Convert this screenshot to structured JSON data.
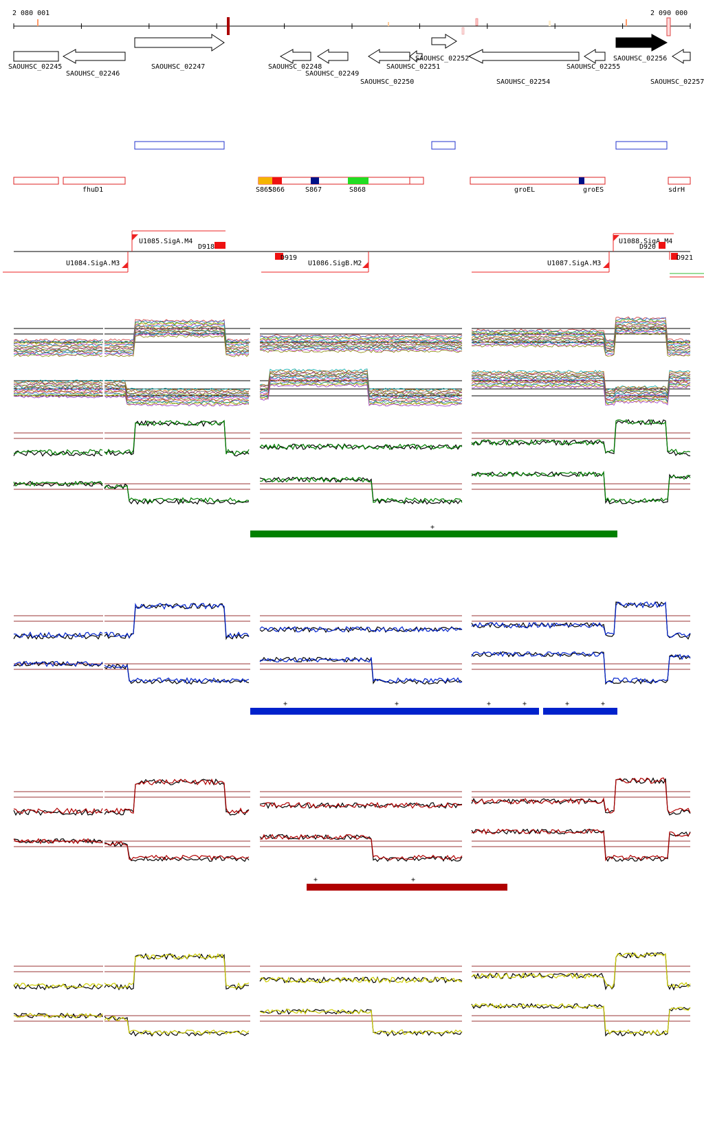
{
  "ruler": {
    "start_label": "2 080 001",
    "end_label": "2 090 000"
  },
  "genes": [
    {
      "label": "SAOUHSC_02245",
      "dir": "right",
      "highlight": false
    },
    {
      "label": "SAOUHSC_02246",
      "dir": "left",
      "highlight": false
    },
    {
      "label": "SAOUHSC_02247",
      "dir": "right",
      "highlight": false
    },
    {
      "label": "SAOUHSC_02248",
      "dir": "left",
      "highlight": false
    },
    {
      "label": "SAOUHSC_02249",
      "dir": "left",
      "highlight": false
    },
    {
      "label": "SAOUHSC_02250",
      "dir": "left",
      "highlight": false
    },
    {
      "label": "SAOUHSC_02251",
      "dir": "left",
      "highlight": false
    },
    {
      "label": "SAOUHSC_02252",
      "dir": "right",
      "highlight": false
    },
    {
      "label": "SAOUHSC_02254",
      "dir": "left",
      "highlight": false
    },
    {
      "label": "SAOUHSC_02255",
      "dir": "left",
      "highlight": false
    },
    {
      "label": "SAOUHSC_02256",
      "dir": "right",
      "highlight": true
    },
    {
      "label": "SAOUHSC_02257",
      "dir": "left",
      "highlight": false
    }
  ],
  "annotations": [
    {
      "label": "fhuD1"
    },
    {
      "label": "S865"
    },
    {
      "label": "S866"
    },
    {
      "label": "S867"
    },
    {
      "label": "S868"
    },
    {
      "label": "groEL"
    },
    {
      "label": "groES"
    },
    {
      "label": "sdrH"
    }
  ],
  "promoters": [
    {
      "label": "U1085.SigA.M4",
      "strand": "+"
    },
    {
      "label": "U1084.SigA.M3",
      "strand": "-"
    },
    {
      "label": "D918",
      "strand": "+"
    },
    {
      "label": "D919",
      "strand": "-"
    },
    {
      "label": "U1086.SigB.M2",
      "strand": "-"
    },
    {
      "label": "U1088.SigA.M4",
      "strand": "+"
    },
    {
      "label": "D920",
      "strand": "+"
    },
    {
      "label": "U1087.SigA.M3",
      "strand": "-"
    },
    {
      "label": "D921",
      "strand": "-"
    }
  ],
  "colors": {
    "green": "#008000",
    "blue": "#0022cc",
    "red": "#b00000",
    "yellow": "#cccc00",
    "gene_highlight": "#000000",
    "annotation_outline": "#dd2222",
    "reference_line": "#993333"
  },
  "marks": {
    "plus": "+"
  }
}
